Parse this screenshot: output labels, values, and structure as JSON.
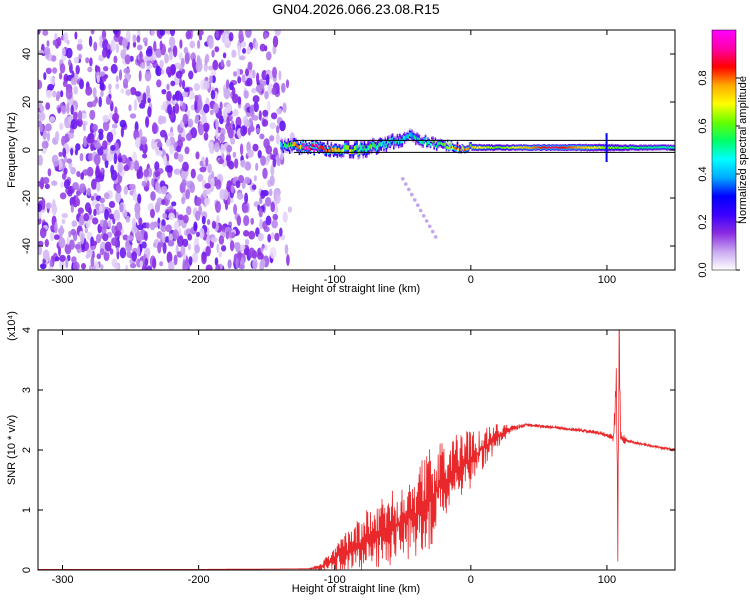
{
  "title": "GN04.2026.066.23.08.R15",
  "chart_data": [
    {
      "type": "heatmap",
      "title": "GN04.2026.066.23.08.R15",
      "xlabel": "Height of straight line (km)",
      "ylabel": "Frequency (Hz)",
      "xlim": [
        -318,
        150
      ],
      "ylim": [
        -50,
        50
      ],
      "xticks": [
        -300,
        -200,
        -100,
        0,
        100
      ],
      "yticks": [
        -40,
        -20,
        0,
        20,
        40
      ],
      "colorbar": {
        "label": "Normalized spectral amplitude",
        "range": [
          0,
          1
        ],
        "ticks": [
          "0.0",
          "0.2",
          "0.4",
          "0.6",
          "0.8"
        ],
        "colormap": [
          "#ffffff",
          "#c9a8f0",
          "#8a2be2",
          "#3b00ff",
          "#0000ff",
          "#00aaff",
          "#00ffff",
          "#00ff66",
          "#66ff00",
          "#ffff00",
          "#ffaa00",
          "#ff0000",
          "#ff00aa",
          "#ff00ff"
        ]
      },
      "noise_region": {
        "x_range": [
          -318,
          -128
        ],
        "frequency_range": [
          -50,
          50
        ],
        "amplitude": "low (0.0-0.2)"
      },
      "signal_band": [
        {
          "x": -140,
          "freq_center": 2,
          "width": 6,
          "amplitude": 0.4
        },
        {
          "x": -120,
          "freq_center": 1,
          "width": 4,
          "amplitude": 0.95
        },
        {
          "x": -100,
          "freq_center": 0,
          "width": 5,
          "amplitude": 0.7
        },
        {
          "x": -80,
          "freq_center": 0,
          "width": 6,
          "amplitude": 0.55
        },
        {
          "x": -60,
          "freq_center": 3,
          "width": 5,
          "amplitude": 0.5
        },
        {
          "x": -45,
          "freq_center": 6,
          "width": 5,
          "amplitude": 0.45
        },
        {
          "x": -30,
          "freq_center": 3,
          "width": 4,
          "amplitude": 0.5
        },
        {
          "x": -10,
          "freq_center": 1,
          "width": 3,
          "amplitude": 0.8
        },
        {
          "x": 20,
          "freq_center": 1,
          "width": 2.5,
          "amplitude": 0.6
        },
        {
          "x": 60,
          "freq_center": 1,
          "width": 2.5,
          "amplitude": 0.9
        },
        {
          "x": 95,
          "freq_center": 1,
          "width": 3,
          "amplitude": 0.65
        },
        {
          "x": 120,
          "freq_center": 1,
          "width": 2.5,
          "amplitude": 0.55
        },
        {
          "x": 150,
          "freq_center": 1,
          "width": 2.5,
          "amplitude": 0.5
        }
      ],
      "reference_lines_freq": [
        -1,
        4
      ]
    },
    {
      "type": "line",
      "xlabel": "Height of straight line (km)",
      "ylabel": "SNR (10 * v/v)",
      "y_multiplier": "(x10⁴)",
      "xlim": [
        -318,
        150
      ],
      "ylim": [
        0,
        4
      ],
      "xticks": [
        -300,
        -200,
        -100,
        0,
        100
      ],
      "yticks": [
        0,
        1,
        2,
        3,
        4
      ],
      "series": [
        {
          "color": "#e8282b",
          "x": [
            -318,
            -200,
            -120,
            -110,
            -100,
            -80,
            -60,
            -40,
            -30,
            -20,
            -10,
            0,
            10,
            20,
            30,
            40,
            50,
            60,
            70,
            80,
            90,
            100,
            105,
            107,
            108,
            109,
            110,
            115,
            130,
            150
          ],
          "y": [
            0.01,
            0.01,
            0.02,
            0.05,
            0.2,
            0.45,
            0.65,
            0.95,
            1.2,
            1.45,
            1.65,
            1.85,
            2.05,
            2.25,
            2.35,
            2.42,
            2.4,
            2.38,
            2.35,
            2.33,
            2.3,
            2.25,
            2.2,
            3.3,
            0.2,
            4.0,
            2.2,
            2.15,
            2.08,
            2.0
          ],
          "noise_amplitude": [
            0,
            0,
            0,
            0.08,
            0.3,
            0.7,
            0.9,
            1.1,
            1.2,
            1.0,
            0.9,
            0.7,
            0.5,
            0.3,
            0.08,
            0.04,
            0.04,
            0.04,
            0.04,
            0.04,
            0.05,
            0.06,
            0.1,
            0.8,
            0.8,
            0.8,
            0.2,
            0.03,
            0.03,
            0.03
          ]
        }
      ]
    }
  ]
}
